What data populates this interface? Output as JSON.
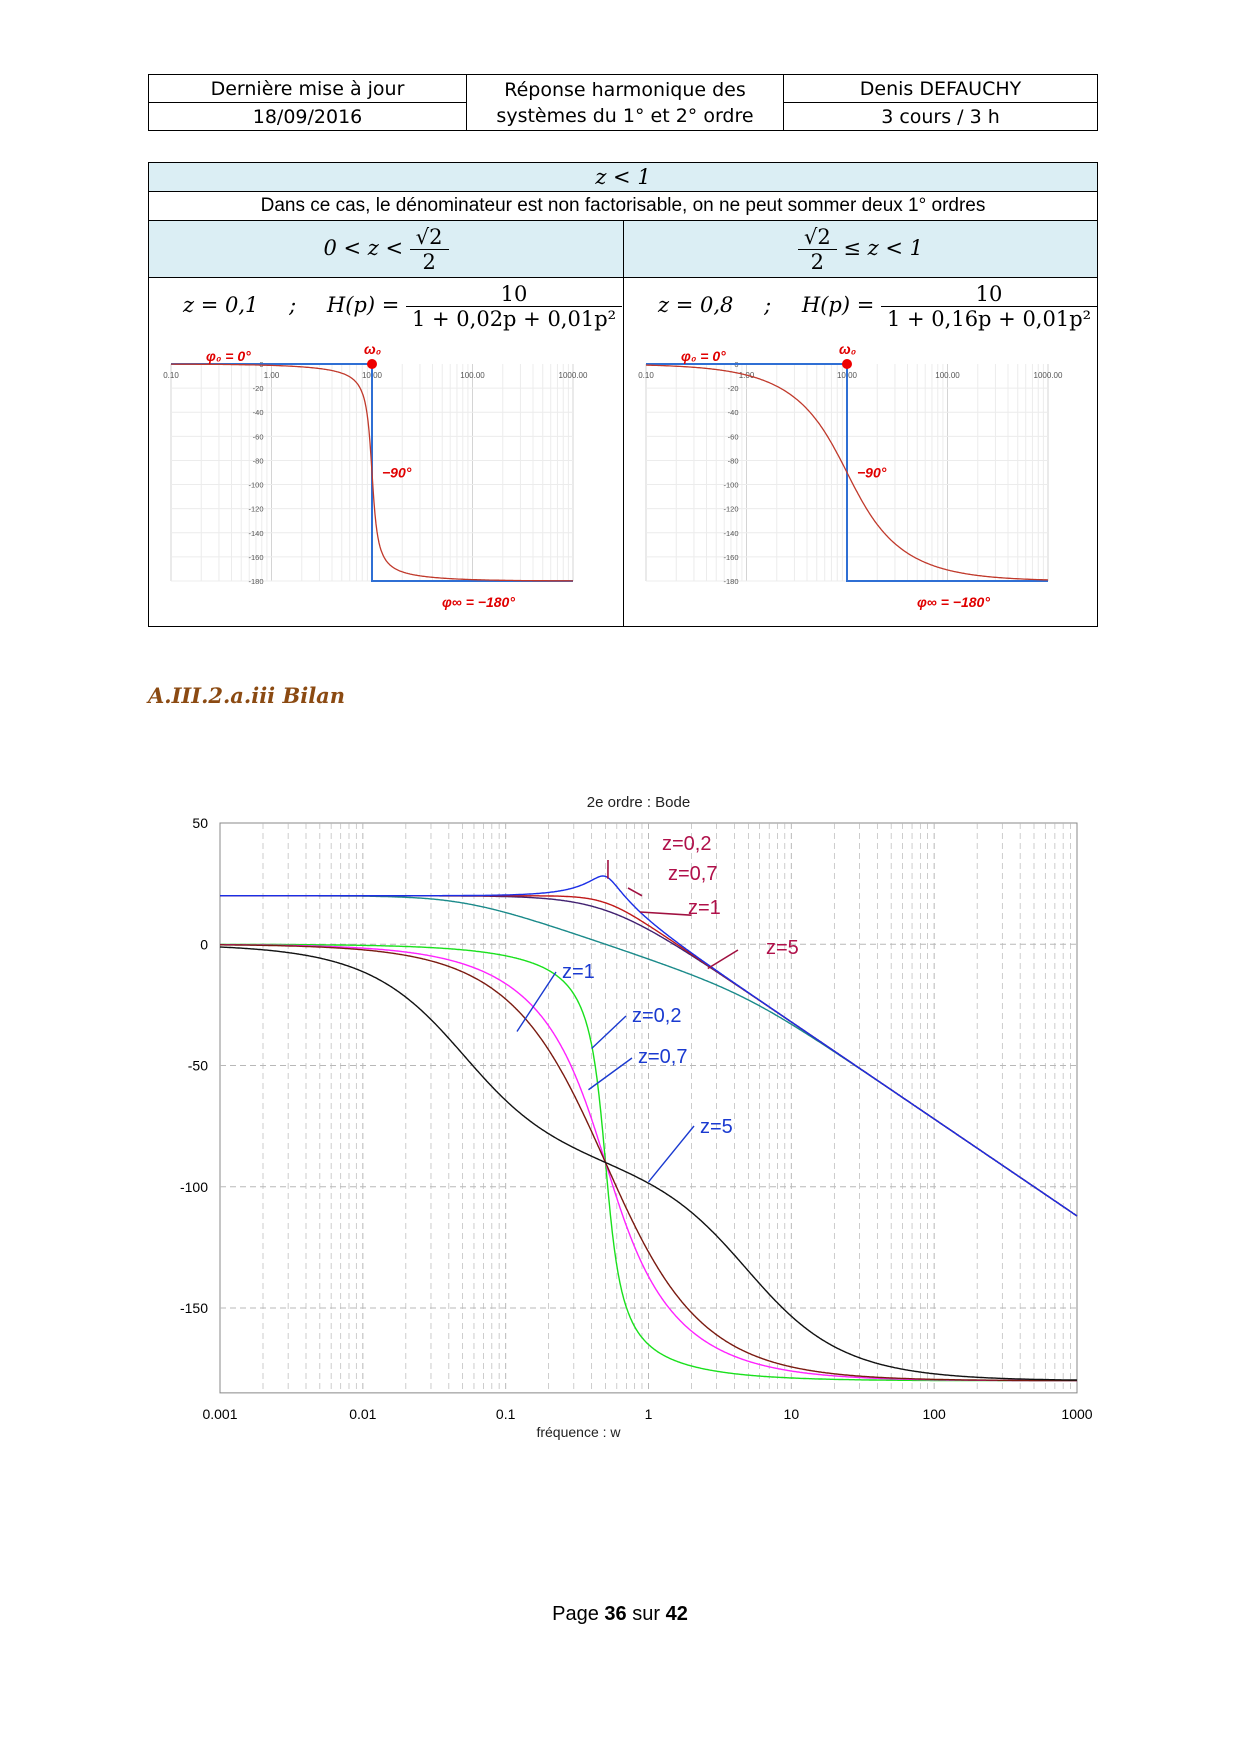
{
  "header": {
    "last_update_label": "Dernière mise à jour",
    "date": "18/09/2016",
    "title_line1": "Réponse harmonique des",
    "title_line2": "systèmes du 1° et 2° ordre",
    "author": "Denis DEFAUCHY",
    "course": "3 cours / 3 h"
  },
  "table": {
    "condition": "z < 1",
    "note": "Dans ce cas, le dénominateur est non factorisable, on ne peut sommer deux 1° ordres",
    "left_case": {
      "prefix": "0 < z <",
      "frac_num": "√2",
      "frac_den": "2"
    },
    "right_case": {
      "frac_num": "√2",
      "frac_den": "2",
      "suffix": "≤ z < 1"
    },
    "left_tf": {
      "z_text": "z = 0,1",
      "sep": ";",
      "h_text": "H(p) =",
      "num": "10",
      "den": "1 + 0,02p + 0,01p²"
    },
    "right_tf": {
      "z_text": "z = 0,8",
      "sep": ";",
      "h_text": "H(p) =",
      "num": "10",
      "den": "1 + 0,16p + 0,01p²"
    }
  },
  "phase_plots": {
    "x_ticks": [
      "0.10",
      "1.00",
      "10.00",
      "100.00",
      "1000.00"
    ],
    "y_ticks": [
      "0",
      "-20",
      "-40",
      "-60",
      "-80",
      "-100",
      "-120",
      "-140",
      "-160",
      "-180"
    ],
    "phi0_label": "φ₀ = 0°",
    "omega0_label": "ω₀",
    "minus90_label": "−90°",
    "phiinf_label": "φ∞ = −180°",
    "left": {
      "z": 0.1,
      "omega0": 10
    },
    "right": {
      "z": 0.8,
      "omega0": 10
    }
  },
  "section_title": "A.III.2.a.iii Bilan",
  "chart_data": {
    "type": "line",
    "title": "2e ordre : Bode",
    "xlabel": "fréquence : w",
    "x_scale": "log",
    "xlim": [
      0.001,
      1000
    ],
    "ylim": [
      -185,
      50
    ],
    "x_ticks": [
      "0.001",
      "0.01",
      "0.1",
      "1",
      "10",
      "100",
      "1000"
    ],
    "y_ticks": [
      "50",
      "0",
      "-50",
      "-100",
      "-150"
    ],
    "grid": true,
    "gain_series": [
      {
        "name": "z=0,2",
        "K": 10,
        "omega0": 0.5,
        "z": 0.2,
        "color": "#1a2ee6"
      },
      {
        "name": "z=0,7",
        "K": 10,
        "omega0": 0.5,
        "z": 0.7,
        "color": "#c01818"
      },
      {
        "name": "z=1",
        "K": 10,
        "omega0": 0.5,
        "z": 1,
        "color": "#402070"
      },
      {
        "name": "z=5",
        "K": 10,
        "omega0": 0.5,
        "z": 5,
        "color": "#1a8a8a"
      }
    ],
    "phase_series": [
      {
        "name": "z=0,2",
        "omega0": 0.5,
        "z": 0.2,
        "color": "#19e01c"
      },
      {
        "name": "z=0,7",
        "omega0": 0.5,
        "z": 0.7,
        "color": "#ff22ff"
      },
      {
        "name": "z=1",
        "omega0": 0.5,
        "z": 1,
        "color": "#7a1a10"
      },
      {
        "name": "z=5",
        "omega0": 0.5,
        "z": 5,
        "color": "#111111"
      }
    ],
    "annotations": {
      "gain": [
        "z=0,2",
        "z=0,7",
        "z=1",
        "z=5"
      ],
      "phase": [
        "z=1",
        "z=0,2",
        "z=0,7",
        "z=5"
      ]
    }
  },
  "footer": {
    "page_word": "Page",
    "page": "36",
    "sep_word": "sur",
    "total": "42"
  }
}
